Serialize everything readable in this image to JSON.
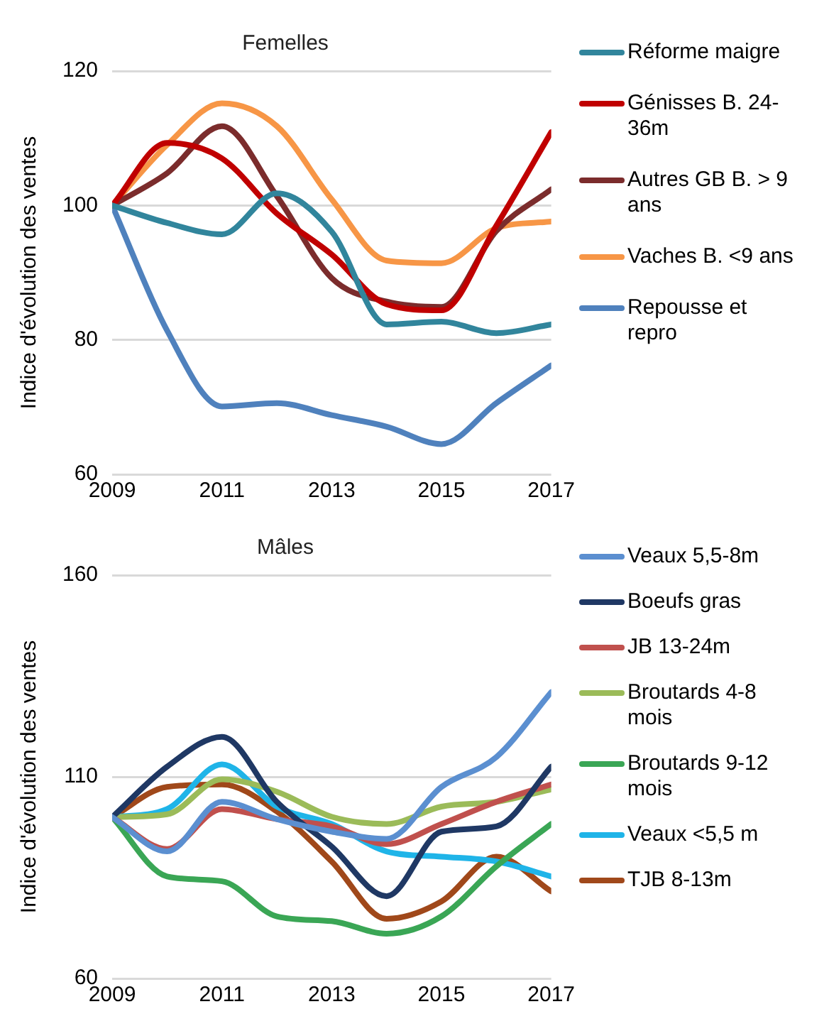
{
  "chart_data": [
    {
      "type": "line",
      "title": "Femelles",
      "ylabel": "Indice d'évolution des ventes",
      "x": [
        2009,
        2010,
        2011,
        2012,
        2013,
        2014,
        2015,
        2016,
        2017
      ],
      "xlim": [
        2009,
        2017
      ],
      "xticks": [
        2009,
        2011,
        2013,
        2015,
        2017
      ],
      "ylim": [
        60,
        120
      ],
      "yticks": [
        60,
        80,
        100,
        120
      ],
      "grid": "y",
      "legend": "right",
      "marker": "none",
      "line_style": "solid",
      "series": [
        {
          "name": "Réforme maigre",
          "color": "#31859c",
          "values": [
            100,
            97.4,
            95.7,
            101.8,
            96.1,
            82.3,
            82.7,
            81,
            82.3
          ]
        },
        {
          "name": "Génisses B. 24-36m",
          "color": "#c00000",
          "values": [
            100,
            109.3,
            107,
            98.8,
            92.7,
            85.3,
            84.4,
            97,
            110.9
          ]
        },
        {
          "name": "Autres GB B. > 9 ans",
          "color": "#7b2c2c",
          "values": [
            100,
            104.8,
            111.8,
            101.4,
            89.2,
            85.7,
            84.9,
            96.2,
            102.4
          ]
        },
        {
          "name": "Vaches B. <9 ans",
          "color": "#f79646",
          "values": [
            100,
            109,
            115.2,
            111.8,
            100.9,
            91.8,
            91.4,
            96.6,
            97.6
          ]
        },
        {
          "name": "Repousse et repro",
          "color": "#4f81bd",
          "values": [
            100,
            81.4,
            70.1,
            70.6,
            68.8,
            67.1,
            64.5,
            70.6,
            76.2
          ]
        }
      ]
    },
    {
      "type": "line",
      "title": "Mâles",
      "ylabel": "Indice d'évolution des ventes",
      "x": [
        2009,
        2010,
        2011,
        2012,
        2013,
        2014,
        2015,
        2016,
        2017
      ],
      "xlim": [
        2009,
        2017
      ],
      "xticks": [
        2009,
        2011,
        2013,
        2015,
        2017
      ],
      "ylim": [
        60,
        160
      ],
      "yticks": [
        60,
        110,
        160
      ],
      "grid": "y",
      "legend": "right",
      "marker": "none",
      "line_style": "solid",
      "series": [
        {
          "name": "Veaux 5,5-8m",
          "color": "#5b8fd0",
          "values": [
            100,
            91.5,
            103.8,
            99.5,
            96.4,
            94.6,
            107.5,
            114.9,
            131
          ]
        },
        {
          "name": "Boeufs gras",
          "color": "#1f3864",
          "values": [
            100,
            112.5,
            119.9,
            103.8,
            92.7,
            80.4,
            96.4,
            97.7,
            112.5
          ]
        },
        {
          "name": "JB 13-24m",
          "color": "#c0504d",
          "values": [
            100,
            92.1,
            102,
            99.5,
            97.7,
            93.3,
            98.3,
            103.8,
            108.1
          ]
        },
        {
          "name": "Broutards 4-8 mois",
          "color": "#9bbb59",
          "values": [
            100,
            100.7,
            109.4,
            106.3,
            100.1,
            98.3,
            102.6,
            103.8,
            106.9
          ]
        },
        {
          "name": "Broutards 9-12 mois",
          "color": "#3aa655",
          "values": [
            100,
            85.3,
            84.1,
            75.4,
            74.2,
            71.1,
            75.4,
            87.8,
            98.3
          ]
        },
        {
          "name": "Veaux <5,5 m",
          "color": "#1fb4e8",
          "values": [
            100,
            102,
            113.1,
            102.6,
            98.3,
            91.5,
            90.2,
            89,
            85.3
          ]
        },
        {
          "name": "TJB 8-13m",
          "color": "#a0481a",
          "values": [
            100,
            107.5,
            108.1,
            101.4,
            89,
            74.8,
            79.1,
            90.2,
            81.6
          ]
        }
      ]
    }
  ]
}
